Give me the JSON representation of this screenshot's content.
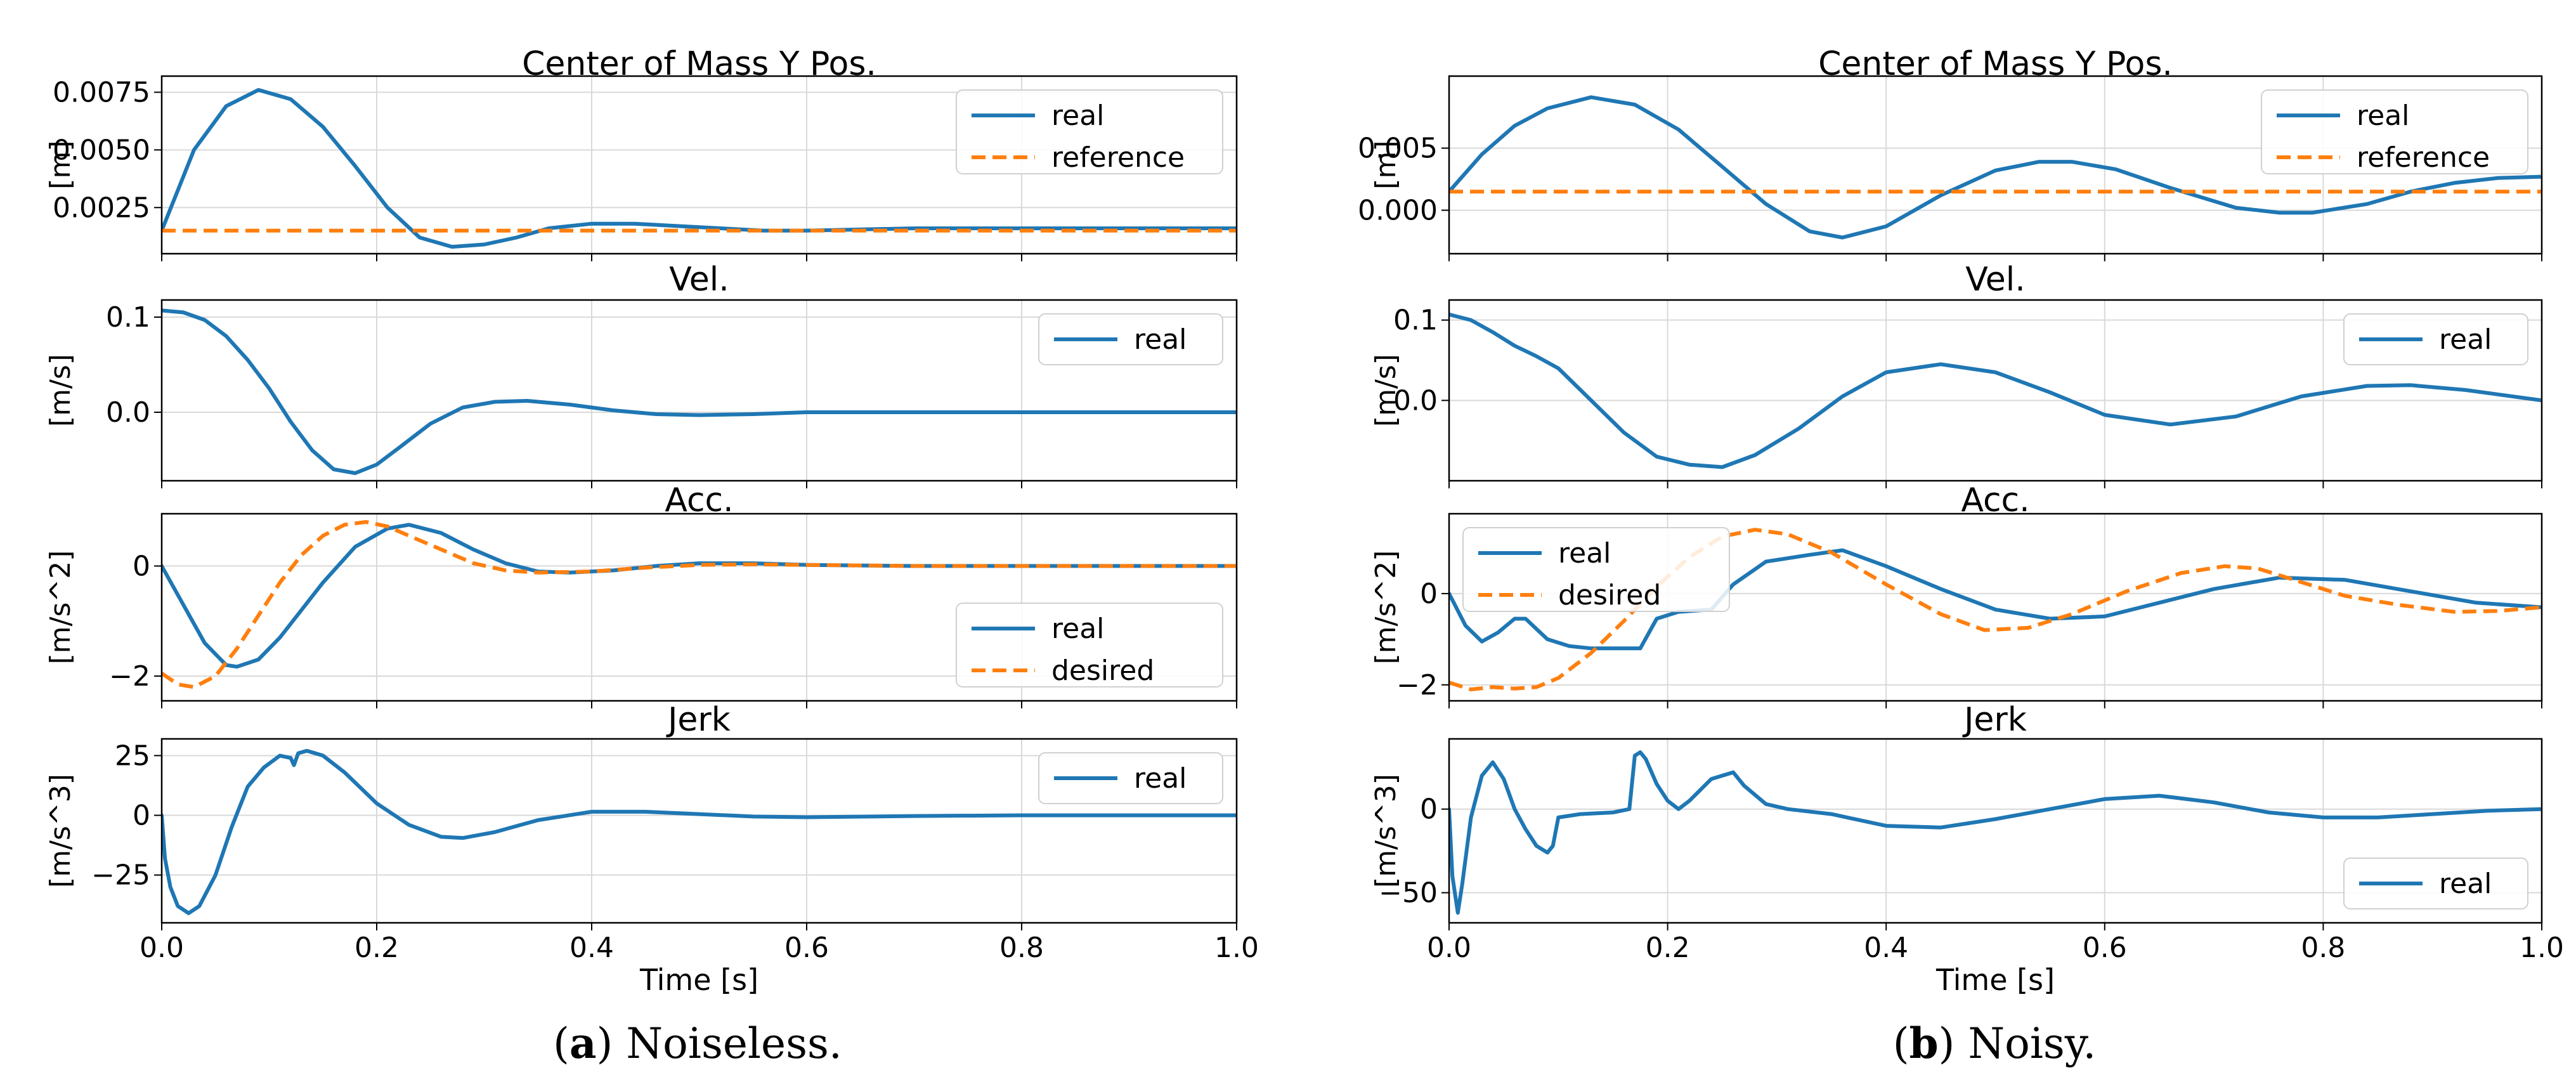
{
  "chart_data": [
    {
      "type": "line",
      "panel_caption": {
        "label": "a",
        "text": "Noiseless."
      },
      "xlabel": "Time [s]",
      "xlim": [
        0,
        1
      ],
      "xticks": [
        "0.0",
        "0.2",
        "0.4",
        "0.6",
        "0.8",
        "1.0"
      ],
      "subplots": [
        {
          "title": "Center of Mass Y Pos.",
          "ylabel": "[m]",
          "ylim": [
            0.0005,
            0.0082
          ],
          "yticks": [
            0.0025,
            0.005,
            0.0075
          ],
          "yticklabels": [
            "0.0025",
            "0.0050",
            "0.0075"
          ],
          "legend_loc": "upper-right",
          "series": [
            {
              "name": "real",
              "style": "solid",
              "color": "#1f77b4",
              "x": [
                0,
                0.03,
                0.06,
                0.09,
                0.12,
                0.15,
                0.18,
                0.21,
                0.24,
                0.27,
                0.3,
                0.33,
                0.36,
                0.4,
                0.44,
                0.48,
                0.52,
                0.56,
                0.6,
                0.7,
                0.8,
                0.9,
                1.0
              ],
              "y": [
                0.0015,
                0.005,
                0.0069,
                0.0076,
                0.0072,
                0.006,
                0.0043,
                0.0025,
                0.0012,
                0.0008,
                0.0009,
                0.0012,
                0.0016,
                0.0018,
                0.0018,
                0.0017,
                0.0016,
                0.0015,
                0.0015,
                0.0016,
                0.0016,
                0.0016,
                0.0016
              ]
            },
            {
              "name": "reference",
              "style": "dashed",
              "color": "#ff7f0e",
              "x": [
                0,
                1
              ],
              "y": [
                0.0015,
                0.0015
              ]
            }
          ]
        },
        {
          "title": "Vel.",
          "ylabel": "[m/s]",
          "ylim": [
            -0.072,
            0.118
          ],
          "yticks": [
            0.0,
            0.1
          ],
          "yticklabels": [
            "0.0",
            "0.1"
          ],
          "legend_loc": "upper-right",
          "series": [
            {
              "name": "real",
              "style": "solid",
              "color": "#1f77b4",
              "x": [
                0,
                0.02,
                0.04,
                0.06,
                0.08,
                0.1,
                0.12,
                0.14,
                0.16,
                0.18,
                0.2,
                0.22,
                0.25,
                0.28,
                0.31,
                0.34,
                0.38,
                0.42,
                0.46,
                0.5,
                0.55,
                0.6,
                0.7,
                0.8,
                0.9,
                1.0
              ],
              "y": [
                0.107,
                0.105,
                0.097,
                0.08,
                0.055,
                0.025,
                -0.01,
                -0.04,
                -0.06,
                -0.064,
                -0.055,
                -0.038,
                -0.012,
                0.005,
                0.011,
                0.012,
                0.008,
                0.002,
                -0.002,
                -0.003,
                -0.002,
                0.0,
                0.0,
                0.0,
                0.0,
                0.0
              ]
            }
          ]
        },
        {
          "title": "Acc.",
          "ylabel": "[m/s^2]",
          "ylim": [
            -2.45,
            0.95
          ],
          "yticks": [
            -2,
            0
          ],
          "yticklabels": [
            "−2",
            "0"
          ],
          "legend_loc": "lower-right",
          "series": [
            {
              "name": "real",
              "style": "solid",
              "color": "#1f77b4",
              "x": [
                0,
                0.02,
                0.04,
                0.06,
                0.07,
                0.09,
                0.11,
                0.13,
                0.15,
                0.18,
                0.21,
                0.23,
                0.26,
                0.29,
                0.32,
                0.35,
                0.38,
                0.42,
                0.46,
                0.5,
                0.55,
                0.6,
                0.7,
                0.8,
                0.9,
                1.0
              ],
              "y": [
                0,
                -0.7,
                -1.4,
                -1.8,
                -1.83,
                -1.7,
                -1.3,
                -0.8,
                -0.3,
                0.35,
                0.68,
                0.75,
                0.6,
                0.3,
                0.05,
                -0.1,
                -0.12,
                -0.08,
                0.0,
                0.05,
                0.05,
                0.02,
                0.0,
                0.0,
                0.0,
                0.0
              ]
            },
            {
              "name": "desired",
              "style": "dashed",
              "color": "#ff7f0e",
              "x": [
                0,
                0.015,
                0.03,
                0.05,
                0.07,
                0.09,
                0.11,
                0.13,
                0.15,
                0.17,
                0.19,
                0.21,
                0.23,
                0.26,
                0.29,
                0.32,
                0.35,
                0.4,
                0.45,
                0.5,
                0.55,
                0.6,
                0.7,
                0.8,
                0.9,
                1.0
              ],
              "y": [
                -1.95,
                -2.15,
                -2.2,
                -2.0,
                -1.5,
                -0.9,
                -0.3,
                0.2,
                0.55,
                0.75,
                0.8,
                0.72,
                0.55,
                0.3,
                0.05,
                -0.08,
                -0.12,
                -0.1,
                -0.03,
                0.02,
                0.03,
                0.02,
                0.0,
                0.0,
                0.0,
                0.0
              ]
            }
          ]
        },
        {
          "title": "Jerk",
          "ylabel": "[m/s^3]",
          "ylim": [
            -45,
            32
          ],
          "yticks": [
            -25,
            0,
            25
          ],
          "yticklabels": [
            "−25",
            "0",
            "25"
          ],
          "legend_loc": "upper-right",
          "series": [
            {
              "name": "real",
              "style": "solid",
              "color": "#1f77b4",
              "x": [
                0,
                0.003,
                0.008,
                0.015,
                0.025,
                0.035,
                0.05,
                0.065,
                0.08,
                0.095,
                0.11,
                0.12,
                0.123,
                0.127,
                0.135,
                0.15,
                0.17,
                0.2,
                0.23,
                0.26,
                0.28,
                0.31,
                0.35,
                0.4,
                0.45,
                0.5,
                0.55,
                0.6,
                0.7,
                0.8,
                0.9,
                1.0
              ],
              "y": [
                0,
                -18,
                -30,
                -38,
                -41,
                -38,
                -25,
                -5,
                12,
                20,
                25,
                24,
                21,
                26,
                27,
                25,
                18,
                5,
                -4,
                -9,
                -9.5,
                -7,
                -2,
                1.5,
                1.5,
                0.5,
                -0.5,
                -0.8,
                -0.3,
                0.0,
                0.0,
                0.0
              ]
            }
          ]
        }
      ]
    },
    {
      "type": "line",
      "panel_caption": {
        "label": "b",
        "text": "Noisy."
      },
      "xlabel": "Time [s]",
      "xlim": [
        0,
        1
      ],
      "xticks": [
        "0.0",
        "0.2",
        "0.4",
        "0.6",
        "0.8",
        "1.0"
      ],
      "subplots": [
        {
          "title": "Center of Mass Y Pos.",
          "ylabel": "[m]",
          "ylim": [
            -0.0035,
            0.0108
          ],
          "yticks": [
            0.0,
            0.005
          ],
          "yticklabels": [
            "0.000",
            "0.005"
          ],
          "legend_loc": "upper-right",
          "series": [
            {
              "name": "real",
              "style": "solid",
              "color": "#1f77b4",
              "x": [
                0,
                0.03,
                0.06,
                0.09,
                0.13,
                0.17,
                0.21,
                0.25,
                0.29,
                0.33,
                0.36,
                0.4,
                0.45,
                0.5,
                0.54,
                0.57,
                0.61,
                0.66,
                0.72,
                0.76,
                0.79,
                0.84,
                0.88,
                0.92,
                0.96,
                1.0
              ],
              "y": [
                0.0015,
                0.0045,
                0.0068,
                0.0082,
                0.0091,
                0.0085,
                0.0065,
                0.0035,
                0.0005,
                -0.0017,
                -0.0022,
                -0.0013,
                0.0012,
                0.0032,
                0.0039,
                0.0039,
                0.0033,
                0.0018,
                0.0002,
                -0.0002,
                -0.0002,
                0.0005,
                0.0015,
                0.0022,
                0.0026,
                0.0027
              ]
            },
            {
              "name": "reference",
              "style": "dashed",
              "color": "#ff7f0e",
              "x": [
                0,
                1
              ],
              "y": [
                0.0015,
                0.0015
              ]
            }
          ]
        },
        {
          "title": "Vel.",
          "ylabel": "[m/s]",
          "ylim": [
            -0.1,
            0.125
          ],
          "yticks": [
            0.0,
            0.1
          ],
          "yticklabels": [
            "0.0",
            "0.1"
          ],
          "legend_loc": "upper-right",
          "series": [
            {
              "name": "real",
              "style": "solid",
              "color": "#1f77b4",
              "x": [
                0,
                0.02,
                0.04,
                0.06,
                0.08,
                0.1,
                0.13,
                0.16,
                0.19,
                0.22,
                0.25,
                0.28,
                0.32,
                0.36,
                0.4,
                0.45,
                0.5,
                0.55,
                0.6,
                0.66,
                0.72,
                0.78,
                0.84,
                0.88,
                0.93,
                1.0
              ],
              "y": [
                0.107,
                0.1,
                0.085,
                0.068,
                0.055,
                0.04,
                0.0,
                -0.04,
                -0.07,
                -0.08,
                -0.083,
                -0.068,
                -0.035,
                0.005,
                0.035,
                0.045,
                0.035,
                0.01,
                -0.018,
                -0.03,
                -0.02,
                0.005,
                0.018,
                0.019,
                0.013,
                0.0
              ]
            }
          ]
        },
        {
          "title": "Acc.",
          "ylabel": "[m/s^2]",
          "ylim": [
            -2.35,
            1.75
          ],
          "yticks": [
            -2,
            0
          ],
          "yticklabels": [
            "−2",
            "0"
          ],
          "legend_loc": "upper-left",
          "series": [
            {
              "name": "real",
              "style": "solid",
              "color": "#1f77b4",
              "x": [
                0,
                0.015,
                0.03,
                0.045,
                0.06,
                0.07,
                0.09,
                0.11,
                0.13,
                0.16,
                0.175,
                0.19,
                0.21,
                0.24,
                0.26,
                0.29,
                0.33,
                0.36,
                0.4,
                0.45,
                0.5,
                0.55,
                0.6,
                0.65,
                0.7,
                0.76,
                0.82,
                0.88,
                0.94,
                1.0
              ],
              "y": [
                0,
                -0.7,
                -1.05,
                -0.85,
                -0.55,
                -0.55,
                -1.0,
                -1.15,
                -1.2,
                -1.2,
                -1.2,
                -0.55,
                -0.4,
                -0.35,
                0.2,
                0.7,
                0.85,
                0.95,
                0.6,
                0.1,
                -0.35,
                -0.55,
                -0.5,
                -0.2,
                0.1,
                0.35,
                0.3,
                0.05,
                -0.2,
                -0.3
              ]
            },
            {
              "name": "desired",
              "style": "dashed",
              "color": "#ff7f0e",
              "x": [
                0,
                0.02,
                0.04,
                0.06,
                0.08,
                0.1,
                0.13,
                0.16,
                0.19,
                0.22,
                0.25,
                0.28,
                0.31,
                0.35,
                0.4,
                0.45,
                0.49,
                0.53,
                0.57,
                0.62,
                0.67,
                0.71,
                0.74,
                0.78,
                0.82,
                0.87,
                0.92,
                0.96,
                1.0
              ],
              "y": [
                -1.95,
                -2.1,
                -2.05,
                -2.08,
                -2.05,
                -1.85,
                -1.3,
                -0.6,
                0.15,
                0.8,
                1.25,
                1.4,
                1.3,
                0.9,
                0.2,
                -0.45,
                -0.8,
                -0.75,
                -0.45,
                0.05,
                0.45,
                0.6,
                0.55,
                0.25,
                -0.05,
                -0.25,
                -0.4,
                -0.38,
                -0.3
              ]
            }
          ]
        },
        {
          "title": "Jerk",
          "ylabel": "[m/s^3]",
          "ylim": [
            -68,
            42
          ],
          "yticks": [
            -50,
            0
          ],
          "yticklabels": [
            "−50",
            "0"
          ],
          "legend_loc": "lower-right",
          "series": [
            {
              "name": "real",
              "style": "solid",
              "color": "#1f77b4",
              "x": [
                0,
                0.003,
                0.008,
                0.012,
                0.02,
                0.03,
                0.04,
                0.05,
                0.06,
                0.07,
                0.08,
                0.09,
                0.095,
                0.1,
                0.12,
                0.15,
                0.165,
                0.17,
                0.175,
                0.18,
                0.19,
                0.2,
                0.21,
                0.22,
                0.24,
                0.26,
                0.27,
                0.29,
                0.31,
                0.35,
                0.4,
                0.45,
                0.5,
                0.55,
                0.6,
                0.65,
                0.7,
                0.75,
                0.8,
                0.85,
                0.9,
                0.95,
                1.0
              ],
              "y": [
                0,
                -40,
                -62,
                -45,
                -5,
                20,
                28,
                18,
                0,
                -12,
                -22,
                -26,
                -22,
                -5,
                -3,
                -2,
                0,
                32,
                34,
                30,
                15,
                5,
                0,
                5,
                18,
                22,
                14,
                3,
                0,
                -3,
                -10,
                -11,
                -6,
                0,
                6,
                8,
                4,
                -2,
                -5,
                -5,
                -3,
                -1,
                0
              ]
            }
          ]
        }
      ]
    }
  ]
}
